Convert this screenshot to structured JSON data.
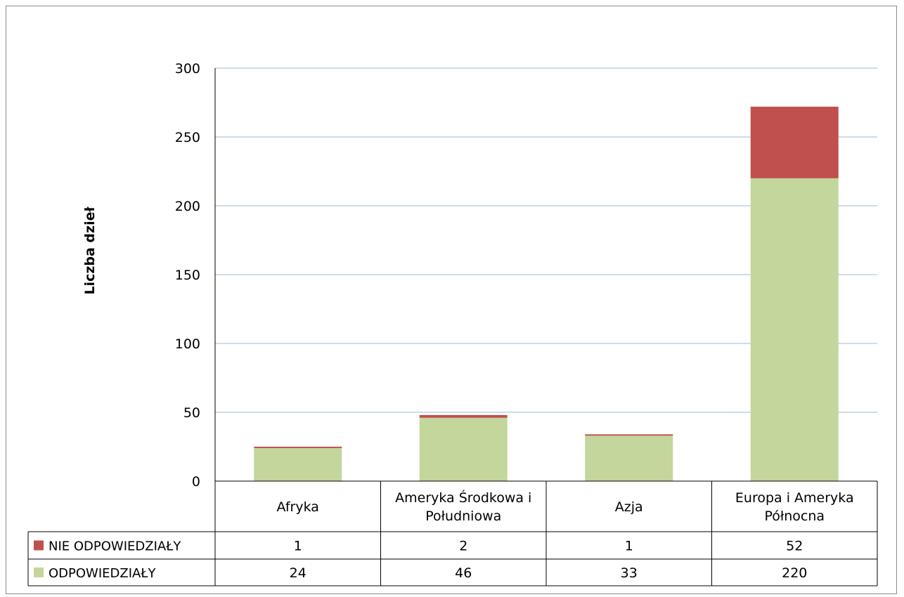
{
  "chart_data": {
    "type": "bar",
    "stacked": true,
    "categories": [
      "Afryka",
      "Ameryka Środkowa i Południowa",
      "Azja",
      "Europa i Ameryka Północna"
    ],
    "category_lines": [
      [
        "Afryka"
      ],
      [
        "Ameryka Środkowa i",
        "Południowa"
      ],
      [
        "Azja"
      ],
      [
        "Europa i Ameryka",
        "Północna"
      ]
    ],
    "series": [
      {
        "name": "ODPOWIEDZIAŁY",
        "values": [
          24,
          46,
          33,
          220
        ],
        "color": "#c3d69b"
      },
      {
        "name": "NIE ODPOWIEDZIAŁY",
        "values": [
          1,
          2,
          1,
          52
        ],
        "color": "#c0504d"
      }
    ],
    "table_order": [
      "NIE ODPOWIEDZIAŁY",
      "ODPOWIEDZIAŁY"
    ],
    "ylabel": "Liczba dzieł",
    "ylim": [
      0,
      300
    ],
    "yticks": [
      0,
      50,
      100,
      150,
      200,
      250,
      300
    ],
    "gridline_color": "#9dbad6",
    "grid": true,
    "legend": "data-table"
  }
}
